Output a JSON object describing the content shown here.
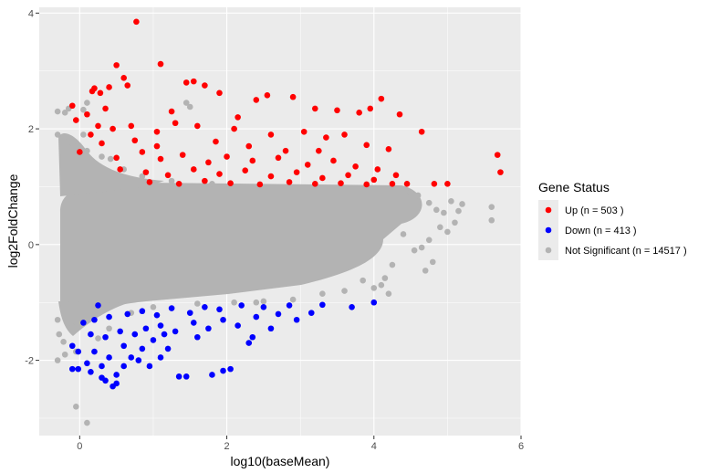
{
  "chart_data": {
    "type": "scatter",
    "title": "",
    "xlabel": "log10(baseMean)",
    "ylabel": "log2FoldChange",
    "xlim": [
      -0.55,
      6.0
    ],
    "ylim": [
      -3.3,
      4.1
    ],
    "xticks": [
      0,
      2,
      4,
      6
    ],
    "yticks": [
      -2,
      0,
      2,
      4
    ],
    "x_tick_labels": [
      "0",
      "2",
      "4",
      "6"
    ],
    "y_tick_labels": [
      "-2",
      "0",
      "2",
      "4"
    ],
    "grid": true,
    "legend": {
      "title": "Gene Status",
      "position": "right"
    },
    "series": [
      {
        "name": "Not Significant",
        "legend_label": "Not Significant (n = 14517 )",
        "count": 14517,
        "color": "#b3b3b3",
        "points": [
          [
            -0.3,
            2.3
          ],
          [
            -0.2,
            2.28
          ],
          [
            -0.15,
            2.35
          ],
          [
            0.05,
            2.33
          ],
          [
            0.1,
            2.45
          ],
          [
            -0.3,
            1.9
          ],
          [
            -0.22,
            1.85
          ],
          [
            -0.1,
            1.75
          ],
          [
            0.0,
            1.55
          ],
          [
            0.05,
            1.9
          ],
          [
            0.1,
            1.62
          ],
          [
            0.3,
            1.52
          ],
          [
            0.42,
            1.48
          ],
          [
            0.6,
            1.3
          ],
          [
            0.85,
            1.18
          ],
          [
            1.25,
            1.1
          ],
          [
            1.45,
            2.45
          ],
          [
            1.5,
            2.38
          ],
          [
            1.8,
            1.05
          ],
          [
            4.3,
            0.95
          ],
          [
            4.5,
            0.9
          ],
          [
            4.6,
            0.85
          ],
          [
            4.75,
            0.72
          ],
          [
            4.85,
            0.6
          ],
          [
            4.95,
            0.55
          ],
          [
            5.05,
            0.75
          ],
          [
            5.15,
            0.58
          ],
          [
            5.2,
            0.7
          ],
          [
            5.1,
            0.38
          ],
          [
            5.0,
            0.22
          ],
          [
            4.9,
            0.3
          ],
          [
            4.75,
            0.08
          ],
          [
            4.65,
            -0.05
          ],
          [
            4.8,
            -0.3
          ],
          [
            4.7,
            -0.45
          ],
          [
            4.55,
            -0.1
          ],
          [
            5.6,
            0.65
          ],
          [
            5.6,
            0.42
          ],
          [
            4.4,
            0.18
          ],
          [
            4.25,
            -0.35
          ],
          [
            4.15,
            -0.58
          ],
          [
            4.0,
            -0.75
          ],
          [
            3.85,
            -0.62
          ],
          [
            3.6,
            -0.8
          ],
          [
            3.3,
            -0.85
          ],
          [
            2.9,
            -0.95
          ],
          [
            2.5,
            -0.98
          ],
          [
            2.1,
            -1.0
          ],
          [
            4.2,
            -0.85
          ],
          [
            4.1,
            -0.7
          ],
          [
            -0.3,
            -1.3
          ],
          [
            -0.28,
            -1.55
          ],
          [
            -0.22,
            -1.68
          ],
          [
            -0.1,
            -1.42
          ],
          [
            -0.05,
            -1.85
          ],
          [
            -0.2,
            -1.9
          ],
          [
            -0.3,
            -2.0
          ],
          [
            -0.05,
            -2.8
          ],
          [
            0.1,
            -3.08
          ],
          [
            0.25,
            -1.62
          ],
          [
            0.4,
            -1.45
          ],
          [
            0.7,
            -1.18
          ],
          [
            1.0,
            -1.08
          ],
          [
            1.6,
            -1.02
          ],
          [
            2.4,
            -1.0
          ]
        ]
      },
      {
        "name": "Up",
        "legend_label": "Up (n = 503 )",
        "count": 503,
        "color": "#ff0000",
        "points": [
          [
            0.77,
            3.85
          ],
          [
            0.5,
            3.1
          ],
          [
            1.1,
            3.12
          ],
          [
            0.6,
            2.88
          ],
          [
            0.2,
            2.7
          ],
          [
            0.17,
            2.65
          ],
          [
            0.28,
            2.62
          ],
          [
            0.4,
            2.72
          ],
          [
            0.65,
            2.75
          ],
          [
            1.45,
            2.8
          ],
          [
            1.55,
            2.82
          ],
          [
            1.7,
            2.75
          ],
          [
            1.9,
            2.62
          ],
          [
            2.4,
            2.5
          ],
          [
            2.55,
            2.58
          ],
          [
            2.9,
            2.55
          ],
          [
            3.2,
            2.35
          ],
          [
            3.5,
            2.32
          ],
          [
            3.8,
            2.28
          ],
          [
            3.95,
            2.35
          ],
          [
            4.1,
            2.52
          ],
          [
            4.35,
            2.25
          ],
          [
            4.65,
            1.95
          ],
          [
            -0.1,
            2.4
          ],
          [
            -0.05,
            2.15
          ],
          [
            0.1,
            2.25
          ],
          [
            0.25,
            2.05
          ],
          [
            0.45,
            2.0
          ],
          [
            0.7,
            2.05
          ],
          [
            1.05,
            1.95
          ],
          [
            1.3,
            2.1
          ],
          [
            1.6,
            2.05
          ],
          [
            2.1,
            2.0
          ],
          [
            2.6,
            1.9
          ],
          [
            3.05,
            1.95
          ],
          [
            3.35,
            1.85
          ],
          [
            3.6,
            1.9
          ],
          [
            3.9,
            1.72
          ],
          [
            4.2,
            1.65
          ],
          [
            0.0,
            1.6
          ],
          [
            0.3,
            1.75
          ],
          [
            0.5,
            1.5
          ],
          [
            0.85,
            1.6
          ],
          [
            1.1,
            1.48
          ],
          [
            1.4,
            1.55
          ],
          [
            1.75,
            1.42
          ],
          [
            2.0,
            1.52
          ],
          [
            2.35,
            1.45
          ],
          [
            2.7,
            1.5
          ],
          [
            3.1,
            1.38
          ],
          [
            3.45,
            1.45
          ],
          [
            3.75,
            1.35
          ],
          [
            4.05,
            1.3
          ],
          [
            4.3,
            1.2
          ],
          [
            0.55,
            1.3
          ],
          [
            0.9,
            1.25
          ],
          [
            1.2,
            1.2
          ],
          [
            1.55,
            1.3
          ],
          [
            1.9,
            1.22
          ],
          [
            2.25,
            1.28
          ],
          [
            2.6,
            1.18
          ],
          [
            2.95,
            1.25
          ],
          [
            3.3,
            1.15
          ],
          [
            3.65,
            1.2
          ],
          [
            4.0,
            1.12
          ],
          [
            0.95,
            1.08
          ],
          [
            1.35,
            1.05
          ],
          [
            1.7,
            1.1
          ],
          [
            2.05,
            1.06
          ],
          [
            2.45,
            1.04
          ],
          [
            2.85,
            1.08
          ],
          [
            3.2,
            1.05
          ],
          [
            3.55,
            1.06
          ],
          [
            3.9,
            1.04
          ],
          [
            4.25,
            1.05
          ],
          [
            4.45,
            1.05
          ],
          [
            4.82,
            1.05
          ],
          [
            5.0,
            1.05
          ],
          [
            5.68,
            1.55
          ],
          [
            5.72,
            1.25
          ],
          [
            0.75,
            1.8
          ],
          [
            1.05,
            1.7
          ],
          [
            1.85,
            1.78
          ],
          [
            2.3,
            1.7
          ],
          [
            2.8,
            1.62
          ],
          [
            3.25,
            1.62
          ],
          [
            0.35,
            2.35
          ],
          [
            0.15,
            1.9
          ],
          [
            1.25,
            2.3
          ],
          [
            2.15,
            2.2
          ]
        ]
      },
      {
        "name": "Down",
        "legend_label": "Down (n = 413 )",
        "count": 413,
        "color": "#0000ff",
        "points": [
          [
            -0.1,
            -2.15
          ],
          [
            -0.02,
            -2.15
          ],
          [
            0.1,
            -2.05
          ],
          [
            0.2,
            -1.85
          ],
          [
            0.3,
            -2.3
          ],
          [
            0.35,
            -2.35
          ],
          [
            0.45,
            -2.45
          ],
          [
            0.5,
            -2.4
          ],
          [
            0.5,
            -2.25
          ],
          [
            0.6,
            -2.1
          ],
          [
            0.7,
            -1.95
          ],
          [
            0.85,
            -1.8
          ],
          [
            1.1,
            -1.95
          ],
          [
            1.35,
            -2.28
          ],
          [
            1.45,
            -2.28
          ],
          [
            1.8,
            -2.25
          ],
          [
            1.95,
            -2.18
          ],
          [
            2.05,
            -2.15
          ],
          [
            2.3,
            -1.7
          ],
          [
            2.35,
            -1.6
          ],
          [
            2.6,
            -1.45
          ],
          [
            2.95,
            -1.3
          ],
          [
            3.15,
            -1.18
          ],
          [
            3.7,
            -1.08
          ],
          [
            4.0,
            -1.0
          ],
          [
            -0.1,
            -1.75
          ],
          [
            -0.02,
            -1.85
          ],
          [
            0.15,
            -1.55
          ],
          [
            0.35,
            -1.6
          ],
          [
            0.55,
            -1.5
          ],
          [
            0.75,
            -1.55
          ],
          [
            0.9,
            -1.45
          ],
          [
            1.1,
            -1.4
          ],
          [
            1.3,
            -1.5
          ],
          [
            1.55,
            -1.35
          ],
          [
            1.75,
            -1.45
          ],
          [
            1.95,
            -1.3
          ],
          [
            2.15,
            -1.4
          ],
          [
            2.4,
            -1.25
          ],
          [
            2.7,
            -1.2
          ],
          [
            0.4,
            -1.25
          ],
          [
            0.65,
            -1.2
          ],
          [
            0.85,
            -1.15
          ],
          [
            1.05,
            -1.22
          ],
          [
            1.25,
            -1.1
          ],
          [
            1.5,
            -1.18
          ],
          [
            1.7,
            -1.08
          ],
          [
            1.9,
            -1.12
          ],
          [
            2.2,
            -1.05
          ],
          [
            2.5,
            -1.08
          ],
          [
            2.85,
            -1.05
          ],
          [
            3.3,
            -1.04
          ],
          [
            0.2,
            -1.3
          ],
          [
            0.25,
            -1.05
          ],
          [
            0.05,
            -1.35
          ],
          [
            0.6,
            -1.75
          ],
          [
            0.8,
            -2.0
          ],
          [
            1.0,
            -1.65
          ],
          [
            1.2,
            -1.8
          ],
          [
            1.6,
            -1.6
          ],
          [
            0.15,
            -2.2
          ],
          [
            0.4,
            -1.95
          ],
          [
            0.3,
            -2.1
          ],
          [
            0.95,
            -2.1
          ],
          [
            1.15,
            -1.55
          ]
        ]
      }
    ]
  }
}
